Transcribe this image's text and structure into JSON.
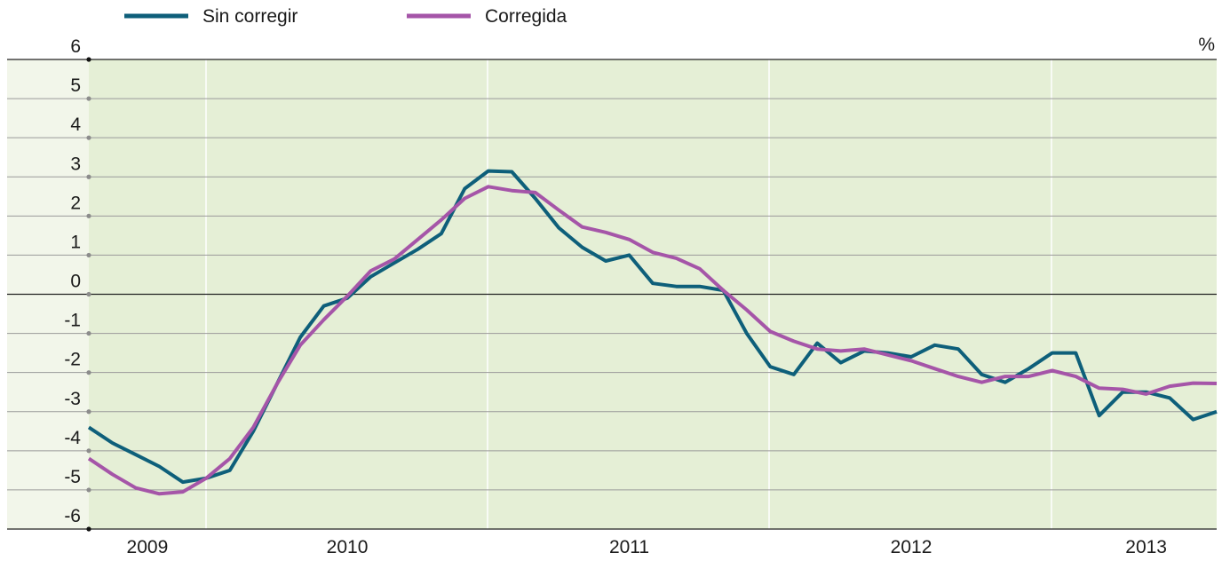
{
  "chart_data": {
    "type": "line",
    "categories": [
      null,
      null,
      "2009",
      null,
      null,
      null,
      null,
      null,
      null,
      null,
      null,
      "2010",
      null,
      null,
      null,
      null,
      null,
      null,
      null,
      null,
      null,
      null,
      null,
      "2011",
      null,
      null,
      null,
      null,
      null,
      null,
      null,
      null,
      null,
      null,
      null,
      "2012",
      null,
      null,
      null,
      null,
      null,
      null,
      null,
      null,
      null,
      "2013",
      null,
      null,
      null
    ],
    "series": [
      {
        "name": "Sin corregir",
        "color": "#0e5f7a",
        "values": [
          -3.4,
          -3.8,
          -4.1,
          -4.4,
          -4.8,
          -4.7,
          -4.5,
          -3.5,
          -2.3,
          -1.1,
          -0.3,
          -0.1,
          0.45,
          0.8,
          1.15,
          1.55,
          2.7,
          3.15,
          3.13,
          2.45,
          1.7,
          1.2,
          0.85,
          1.0,
          0.28,
          0.2,
          0.2,
          0.1,
          -1.0,
          -1.85,
          -2.05,
          -1.25,
          -1.75,
          -1.45,
          -1.5,
          -1.6,
          -1.3,
          -1.4,
          -2.05,
          -2.25,
          -1.9,
          -1.5,
          -1.5,
          -3.1,
          -2.5,
          -2.5,
          -2.65,
          -3.2,
          -3.0
        ]
      },
      {
        "name": "Corregida",
        "color": "#a555a8",
        "values": [
          -4.2,
          -4.6,
          -4.95,
          -5.1,
          -5.05,
          -4.7,
          -4.2,
          -3.4,
          -2.3,
          -1.3,
          -0.65,
          -0.05,
          0.6,
          0.9,
          1.4,
          1.9,
          2.45,
          2.75,
          2.65,
          2.6,
          2.15,
          1.72,
          1.58,
          1.4,
          1.07,
          0.92,
          0.65,
          0.1,
          -0.4,
          -0.95,
          -1.2,
          -1.4,
          -1.45,
          -1.4,
          -1.55,
          -1.7,
          -1.9,
          -2.1,
          -2.25,
          -2.1,
          -2.1,
          -1.95,
          -2.1,
          -2.4,
          -2.43,
          -2.55,
          -2.35,
          -2.27,
          -2.28
        ]
      }
    ],
    "y_unit": "%",
    "ylim": [
      -6,
      6
    ],
    "yticks": [
      6,
      5,
      4,
      3,
      2,
      1,
      0,
      -1,
      -2,
      -3,
      -4,
      -5,
      -6
    ],
    "grid": true,
    "legend": "top-left"
  }
}
